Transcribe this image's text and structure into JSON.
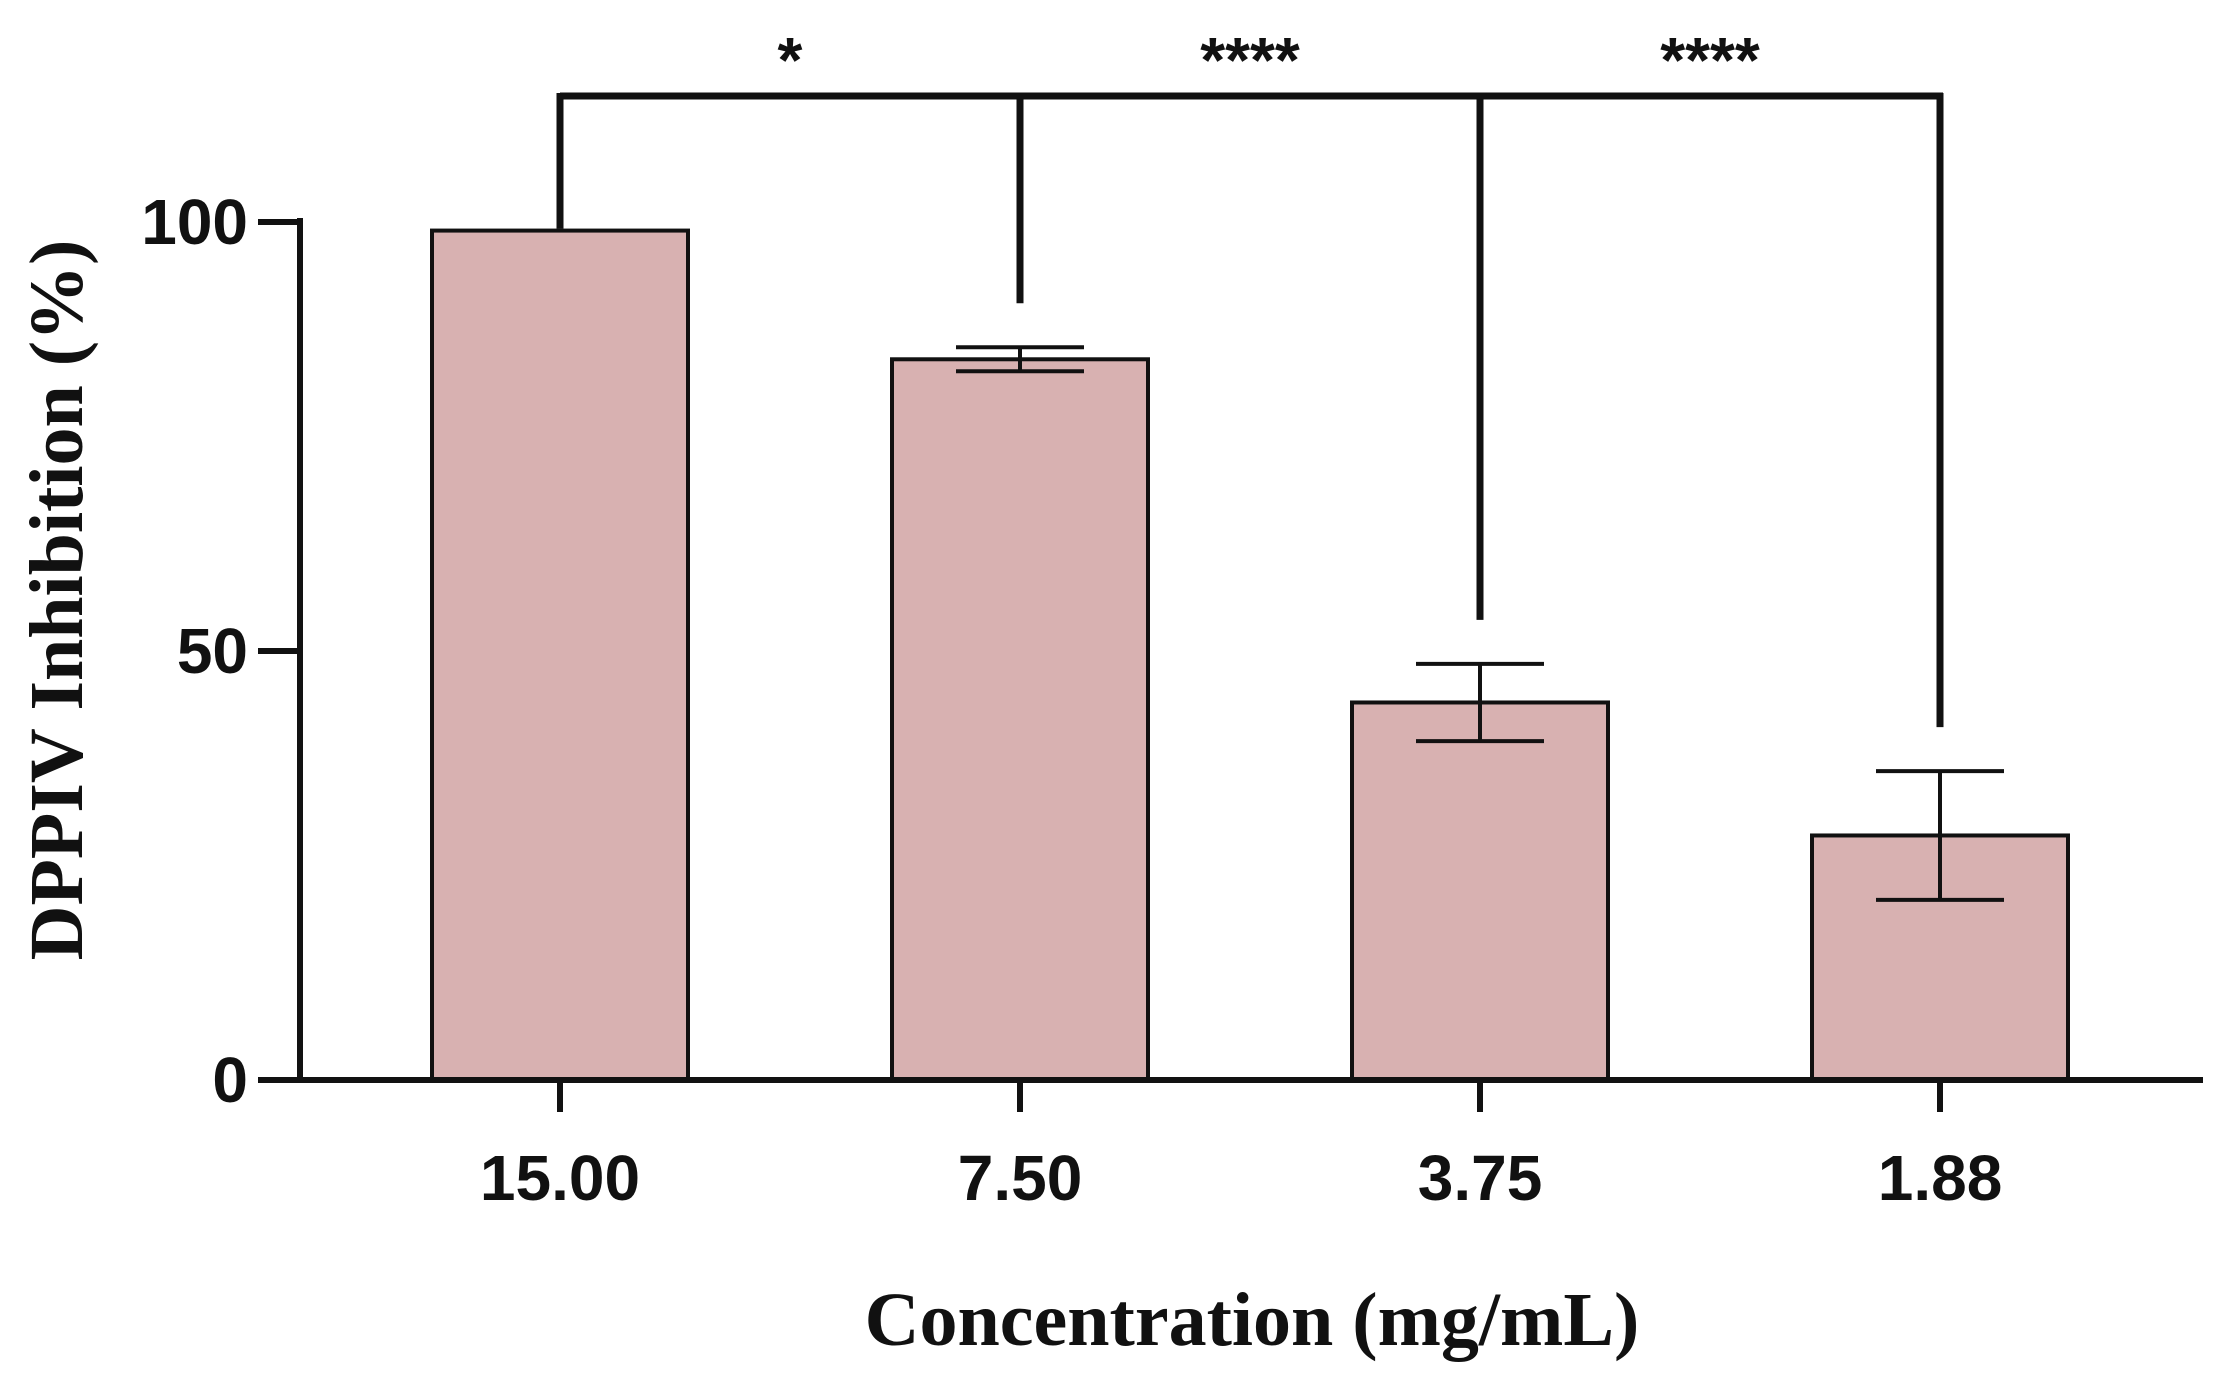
{
  "chart_data": {
    "type": "bar",
    "categories": [
      "15.00",
      "7.50",
      "3.75",
      "1.88"
    ],
    "series": [
      {
        "values": [
          99,
          84,
          44,
          28.5
        ],
        "errors": [
          0,
          1.4,
          4.5,
          7.5
        ]
      }
    ],
    "xlabel": "Concentration (mg/mL)",
    "ylabel": "DPPIV Inhibition (%)",
    "ylim": [
      0,
      100
    ],
    "yticks": [
      0,
      50,
      100
    ],
    "grid": false,
    "bar_color": "#d8b1b1",
    "edge_color": "#111111",
    "comparisons": [
      {
        "from": "15.00",
        "to": "7.50",
        "label": "*"
      },
      {
        "from": "15.00",
        "to": "3.75",
        "label": "****"
      },
      {
        "from": "15.00",
        "to": "1.88",
        "label": "****"
      }
    ]
  }
}
